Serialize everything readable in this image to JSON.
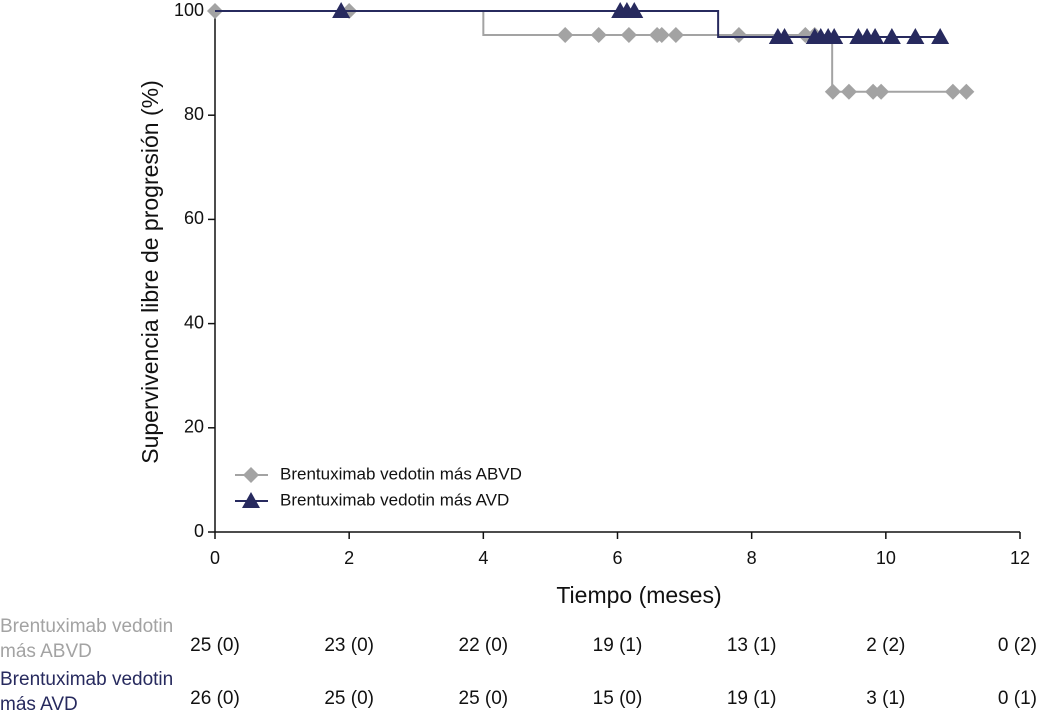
{
  "chart_data": {
    "type": "step",
    "x_label": "Tiempo (meses)",
    "y_label": "Supervivencia libre de progresión (%)",
    "xlim": [
      0,
      12
    ],
    "xticks": [
      0,
      2,
      4,
      6,
      8,
      10,
      12
    ],
    "ylim": [
      0,
      100
    ],
    "yticks": [
      0,
      20,
      40,
      60,
      80,
      100
    ],
    "grid": false,
    "legend": "lower left",
    "series": [
      {
        "name": "Brentuximab vedotin más ABVD",
        "color": "#a3a3a3",
        "marker": "diamond",
        "x": [
          0,
          4.0,
          9.2,
          11.2
        ],
        "values": [
          100,
          95.4,
          84.5,
          84.5
        ],
        "censor_x": [
          0,
          2.0,
          5.22,
          5.72,
          6.17,
          6.59,
          6.66,
          6.87,
          7.81,
          8.8,
          8.94,
          9.21,
          9.45,
          9.81,
          9.93,
          11.0,
          11.2
        ],
        "censor_values": [
          100,
          100,
          95.4,
          95.4,
          95.4,
          95.4,
          95.4,
          95.4,
          95.4,
          95.4,
          95.4,
          84.5,
          84.5,
          84.5,
          84.5,
          84.5,
          84.5
        ]
      },
      {
        "name": "Brentuximab vedotin más AVD",
        "color": "#272a5e",
        "marker": "triangle",
        "x": [
          0,
          7.5,
          10.8
        ],
        "values": [
          100,
          95.0,
          95.0
        ],
        "censor_x": [
          1.88,
          6.04,
          6.14,
          6.25,
          8.39,
          8.49,
          8.94,
          9.03,
          9.14,
          9.23,
          9.59,
          9.72,
          9.84,
          10.09,
          10.44,
          10.81
        ],
        "censor_values": [
          100,
          100,
          100,
          100,
          95.0,
          95.0,
          95.0,
          95.0,
          95.0,
          95.0,
          95.0,
          95.0,
          95.0,
          95.0,
          95.0,
          95.0
        ]
      }
    ],
    "risk_table": [
      {
        "label": "Brentuximab vedotin más ABVD",
        "cells": [
          "25 (0)",
          "23 (0)",
          "22 (0)",
          "19 (1)",
          "13 (1)",
          "2 (2)",
          "0 (2)"
        ]
      },
      {
        "label": "Brentuximab vedotin más AVD",
        "cells": [
          "26 (0)",
          "25 (0)",
          "25 (0)",
          "15 (0)",
          "19 (1)",
          "3 (1)",
          "0 (1)"
        ]
      }
    ]
  }
}
